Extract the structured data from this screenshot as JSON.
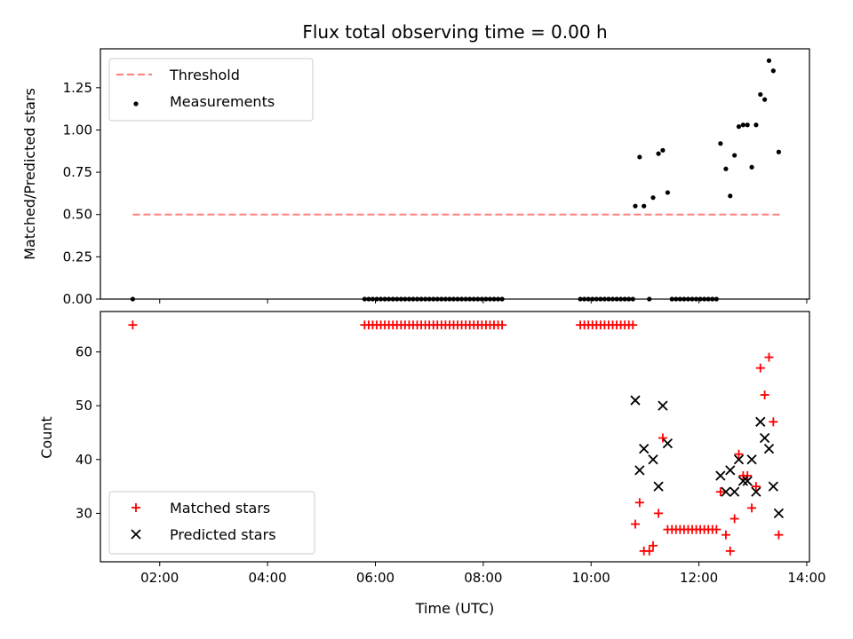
{
  "chart_data": [
    {
      "type": "scatter",
      "title": "Flux total observing time = 0.00 h",
      "ylabel": "Matched/Predicted stars",
      "xlabel": "",
      "x_unit": "hours UTC",
      "xlim": [
        0.9,
        14.05
      ],
      "ylim": [
        0,
        1.48
      ],
      "x_ticks": [
        2,
        4,
        6,
        8,
        10,
        12,
        14
      ],
      "y_ticks": [
        0.0,
        0.25,
        0.5,
        0.75,
        1.0,
        1.25
      ],
      "y_tick_labels": [
        "0.00",
        "0.25",
        "0.50",
        "0.75",
        "1.00",
        "1.25"
      ],
      "grid": false,
      "legend_position": "top-left",
      "legend": [
        "Threshold",
        "Measurements"
      ],
      "threshold": {
        "name": "Threshold",
        "y": 0.5,
        "x_start": 1.5,
        "x_end": 13.5,
        "color": "#ff7f7f",
        "style": "dashed"
      },
      "series": [
        {
          "name": "Measurements",
          "color": "#000000",
          "marker": "dot",
          "points": [
            [
              1.5,
              0.0
            ],
            [
              5.8,
              0.0
            ],
            [
              5.875,
              0.0
            ],
            [
              5.95,
              0.0
            ],
            [
              6.025,
              0.0
            ],
            [
              6.1,
              0.0
            ],
            [
              6.175,
              0.0
            ],
            [
              6.25,
              0.0
            ],
            [
              6.325,
              0.0
            ],
            [
              6.4,
              0.0
            ],
            [
              6.475,
              0.0
            ],
            [
              6.55,
              0.0
            ],
            [
              6.625,
              0.0
            ],
            [
              6.7,
              0.0
            ],
            [
              6.775,
              0.0
            ],
            [
              6.85,
              0.0
            ],
            [
              6.925,
              0.0
            ],
            [
              7.0,
              0.0
            ],
            [
              7.075,
              0.0
            ],
            [
              7.15,
              0.0
            ],
            [
              7.225,
              0.0
            ],
            [
              7.3,
              0.0
            ],
            [
              7.375,
              0.0
            ],
            [
              7.45,
              0.0
            ],
            [
              7.525,
              0.0
            ],
            [
              7.6,
              0.0
            ],
            [
              7.675,
              0.0
            ],
            [
              7.75,
              0.0
            ],
            [
              7.825,
              0.0
            ],
            [
              7.9,
              0.0
            ],
            [
              7.975,
              0.0
            ],
            [
              8.05,
              0.0
            ],
            [
              8.125,
              0.0
            ],
            [
              8.2,
              0.0
            ],
            [
              8.275,
              0.0
            ],
            [
              8.35,
              0.0
            ],
            [
              9.8,
              0.0
            ],
            [
              9.875,
              0.0
            ],
            [
              9.95,
              0.0
            ],
            [
              10.025,
              0.0
            ],
            [
              10.1,
              0.0
            ],
            [
              10.175,
              0.0
            ],
            [
              10.25,
              0.0
            ],
            [
              10.325,
              0.0
            ],
            [
              10.4,
              0.0
            ],
            [
              10.475,
              0.0
            ],
            [
              10.55,
              0.0
            ],
            [
              10.625,
              0.0
            ],
            [
              10.7,
              0.0
            ],
            [
              10.775,
              0.0
            ],
            [
              10.82,
              0.55
            ],
            [
              10.9,
              0.84
            ],
            [
              10.98,
              0.55
            ],
            [
              11.08,
              0.0
            ],
            [
              11.15,
              0.6
            ],
            [
              11.25,
              0.86
            ],
            [
              11.33,
              0.88
            ],
            [
              11.42,
              0.63
            ],
            [
              11.5,
              0.0
            ],
            [
              11.575,
              0.0
            ],
            [
              11.65,
              0.0
            ],
            [
              11.725,
              0.0
            ],
            [
              11.8,
              0.0
            ],
            [
              11.875,
              0.0
            ],
            [
              11.95,
              0.0
            ],
            [
              12.025,
              0.0
            ],
            [
              12.1,
              0.0
            ],
            [
              12.175,
              0.0
            ],
            [
              12.25,
              0.0
            ],
            [
              12.325,
              0.0
            ],
            [
              12.4,
              0.92
            ],
            [
              12.5,
              0.77
            ],
            [
              12.58,
              0.61
            ],
            [
              12.66,
              0.85
            ],
            [
              12.74,
              1.02
            ],
            [
              12.82,
              1.03
            ],
            [
              12.9,
              1.03
            ],
            [
              12.98,
              0.78
            ],
            [
              13.06,
              1.03
            ],
            [
              13.14,
              1.21
            ],
            [
              13.22,
              1.18
            ],
            [
              13.3,
              1.41
            ],
            [
              13.38,
              1.35
            ],
            [
              13.48,
              0.87
            ]
          ]
        }
      ]
    },
    {
      "type": "scatter",
      "title": "",
      "ylabel": "Count",
      "xlabel": "Time (UTC)",
      "x_unit": "hours UTC",
      "xlim": [
        0.9,
        14.05
      ],
      "ylim": [
        21,
        67.5
      ],
      "x_ticks": [
        2,
        4,
        6,
        8,
        10,
        12,
        14
      ],
      "x_tick_labels": [
        "02:00",
        "04:00",
        "06:00",
        "08:00",
        "10:00",
        "12:00",
        "14:00"
      ],
      "y_ticks": [
        30,
        40,
        50,
        60
      ],
      "y_tick_labels": [
        "30",
        "40",
        "50",
        "60"
      ],
      "grid": false,
      "legend_position": "bottom-left",
      "legend": [
        "Matched stars",
        "Predicted stars"
      ],
      "series": [
        {
          "name": "Matched stars",
          "color": "#ff0000",
          "marker": "plus",
          "points": [
            [
              1.5,
              65
            ],
            [
              5.8,
              65
            ],
            [
              5.875,
              65
            ],
            [
              5.95,
              65
            ],
            [
              6.025,
              65
            ],
            [
              6.1,
              65
            ],
            [
              6.175,
              65
            ],
            [
              6.25,
              65
            ],
            [
              6.325,
              65
            ],
            [
              6.4,
              65
            ],
            [
              6.475,
              65
            ],
            [
              6.55,
              65
            ],
            [
              6.625,
              65
            ],
            [
              6.7,
              65
            ],
            [
              6.775,
              65
            ],
            [
              6.85,
              65
            ],
            [
              6.925,
              65
            ],
            [
              7.0,
              65
            ],
            [
              7.075,
              65
            ],
            [
              7.15,
              65
            ],
            [
              7.225,
              65
            ],
            [
              7.3,
              65
            ],
            [
              7.375,
              65
            ],
            [
              7.45,
              65
            ],
            [
              7.525,
              65
            ],
            [
              7.6,
              65
            ],
            [
              7.675,
              65
            ],
            [
              7.75,
              65
            ],
            [
              7.825,
              65
            ],
            [
              7.9,
              65
            ],
            [
              7.975,
              65
            ],
            [
              8.05,
              65
            ],
            [
              8.125,
              65
            ],
            [
              8.2,
              65
            ],
            [
              8.275,
              65
            ],
            [
              8.35,
              65
            ],
            [
              9.8,
              65
            ],
            [
              9.875,
              65
            ],
            [
              9.95,
              65
            ],
            [
              10.025,
              65
            ],
            [
              10.1,
              65
            ],
            [
              10.175,
              65
            ],
            [
              10.25,
              65
            ],
            [
              10.325,
              65
            ],
            [
              10.4,
              65
            ],
            [
              10.475,
              65
            ],
            [
              10.55,
              65
            ],
            [
              10.625,
              65
            ],
            [
              10.7,
              65
            ],
            [
              10.775,
              65
            ],
            [
              10.82,
              28
            ],
            [
              10.9,
              32
            ],
            [
              10.98,
              23
            ],
            [
              11.08,
              23
            ],
            [
              11.15,
              24
            ],
            [
              11.25,
              30
            ],
            [
              11.33,
              44
            ],
            [
              11.42,
              27
            ],
            [
              11.5,
              27
            ],
            [
              11.575,
              27
            ],
            [
              11.65,
              27
            ],
            [
              11.725,
              27
            ],
            [
              11.8,
              27
            ],
            [
              11.875,
              27
            ],
            [
              11.95,
              27
            ],
            [
              12.025,
              27
            ],
            [
              12.1,
              27
            ],
            [
              12.175,
              27
            ],
            [
              12.25,
              27
            ],
            [
              12.325,
              27
            ],
            [
              12.4,
              34
            ],
            [
              12.5,
              26
            ],
            [
              12.58,
              23
            ],
            [
              12.66,
              29
            ],
            [
              12.74,
              41
            ],
            [
              12.82,
              37
            ],
            [
              12.9,
              37
            ],
            [
              12.98,
              31
            ],
            [
              13.06,
              35
            ],
            [
              13.14,
              57
            ],
            [
              13.22,
              52
            ],
            [
              13.3,
              59
            ],
            [
              13.38,
              47
            ],
            [
              13.48,
              26
            ]
          ]
        },
        {
          "name": "Predicted stars",
          "color": "#000000",
          "marker": "x",
          "points": [
            [
              10.82,
              51
            ],
            [
              10.9,
              38
            ],
            [
              10.98,
              42
            ],
            [
              11.15,
              40
            ],
            [
              11.25,
              35
            ],
            [
              11.33,
              50
            ],
            [
              11.42,
              43
            ],
            [
              12.4,
              37
            ],
            [
              12.5,
              34
            ],
            [
              12.58,
              38
            ],
            [
              12.66,
              34
            ],
            [
              12.74,
              40
            ],
            [
              12.82,
              36
            ],
            [
              12.9,
              36
            ],
            [
              12.98,
              40
            ],
            [
              13.06,
              34
            ],
            [
              13.14,
              47
            ],
            [
              13.22,
              44
            ],
            [
              13.3,
              42
            ],
            [
              13.38,
              35
            ],
            [
              13.48,
              30
            ]
          ]
        }
      ]
    }
  ]
}
